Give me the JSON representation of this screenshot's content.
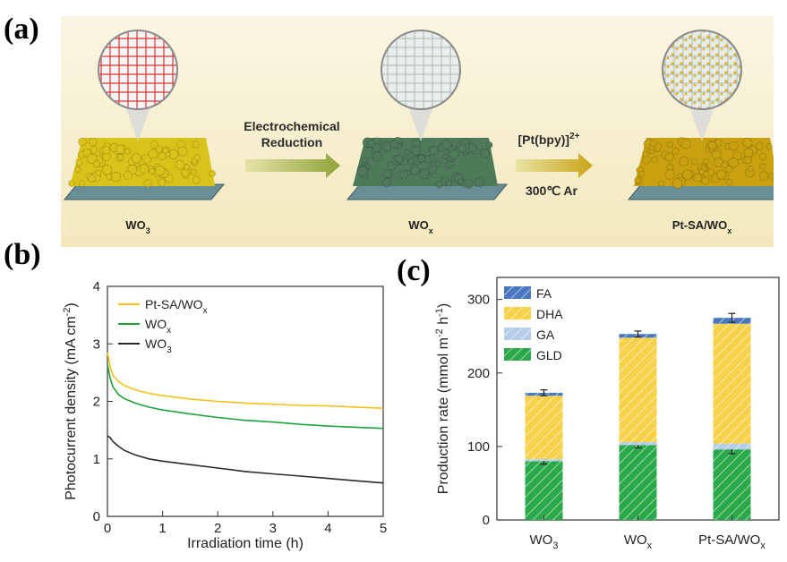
{
  "panels": {
    "a": "(a)",
    "b": "(b)",
    "c": "(c)"
  },
  "schematic": {
    "materials": [
      {
        "name": "WO",
        "sub": "3",
        "color": "#d9c21a"
      },
      {
        "name": "WO",
        "sub": "x",
        "color": "#4e7a5a"
      },
      {
        "name": "Pt-SA/WO",
        "sub": "x",
        "color": "#c9a010"
      }
    ],
    "step1": {
      "line1": "Electrochemical",
      "line2": "Reduction"
    },
    "step2": {
      "line1": "[Pt(bpy)]",
      "sup": "2+",
      "line2": "300℃ Ar"
    }
  },
  "chart_data": [
    {
      "type": "line",
      "xlabel": "Irradiation time (h)",
      "ylabel": "Photocurrent density (mA cm",
      "ylabel_sup": "-2",
      "ylabel_end": ")",
      "xlim": [
        0,
        5
      ],
      "ylim": [
        0,
        4
      ],
      "xticks": [
        0,
        1,
        2,
        3,
        4,
        5
      ],
      "yticks": [
        0,
        1,
        2,
        3,
        4
      ],
      "legend_position": "top-left",
      "series": [
        {
          "name": "Pt-SA/WO",
          "sub": "x",
          "color": "#f2c21b",
          "x": [
            0,
            0.05,
            0.1,
            0.2,
            0.3,
            0.5,
            0.75,
            1,
            1.5,
            2,
            2.5,
            3,
            3.5,
            4,
            4.5,
            5
          ],
          "y": [
            2.85,
            2.6,
            2.45,
            2.35,
            2.28,
            2.2,
            2.14,
            2.1,
            2.04,
            2.0,
            1.97,
            1.95,
            1.93,
            1.92,
            1.9,
            1.88
          ]
        },
        {
          "name": "WO",
          "sub": "x",
          "color": "#1fa33b",
          "x": [
            0,
            0.05,
            0.1,
            0.2,
            0.3,
            0.5,
            0.75,
            1,
            1.5,
            2,
            2.5,
            3,
            3.5,
            4,
            4.5,
            5
          ],
          "y": [
            2.65,
            2.4,
            2.25,
            2.12,
            2.05,
            1.97,
            1.9,
            1.85,
            1.78,
            1.72,
            1.67,
            1.64,
            1.6,
            1.57,
            1.55,
            1.53
          ]
        },
        {
          "name": "WO",
          "sub": "3",
          "color": "#2b2b2b",
          "x": [
            0,
            0.05,
            0.1,
            0.2,
            0.3,
            0.5,
            0.75,
            1,
            1.5,
            2,
            2.5,
            3,
            3.5,
            4,
            4.5,
            5
          ],
          "y": [
            1.4,
            1.37,
            1.3,
            1.22,
            1.15,
            1.07,
            1.0,
            0.96,
            0.9,
            0.84,
            0.78,
            0.74,
            0.7,
            0.66,
            0.62,
            0.58
          ]
        }
      ]
    },
    {
      "type": "bar",
      "stacked": true,
      "ylabel": "Production rate (mmol m",
      "ylabel_sup": "-2",
      "ylabel_mid": " h",
      "ylabel_sup2": "-1",
      "ylabel_end": ")",
      "ylim": [
        0,
        330
      ],
      "yticks": [
        0,
        100,
        200,
        300
      ],
      "legend_position": "top-left",
      "categories": [
        {
          "name": "WO",
          "sub": "3"
        },
        {
          "name": "WO",
          "sub": "x"
        },
        {
          "name": "Pt-SA/WO",
          "sub": "x"
        }
      ],
      "series": [
        {
          "name": "GLD",
          "color": "#2aa84a",
          "values": [
            80,
            102,
            96
          ]
        },
        {
          "name": "GA",
          "color": "#b5cde8",
          "values": [
            3,
            4,
            8
          ]
        },
        {
          "name": "DHA",
          "color": "#f6d24a",
          "values": [
            86,
            142,
            163
          ]
        },
        {
          "name": "FA",
          "color": "#4a78c0",
          "values": [
            4,
            5,
            8
          ]
        }
      ],
      "error_at": {
        "GLD": [
          4,
          4,
          6
        ],
        "total": [
          4,
          4,
          6
        ]
      }
    }
  ]
}
